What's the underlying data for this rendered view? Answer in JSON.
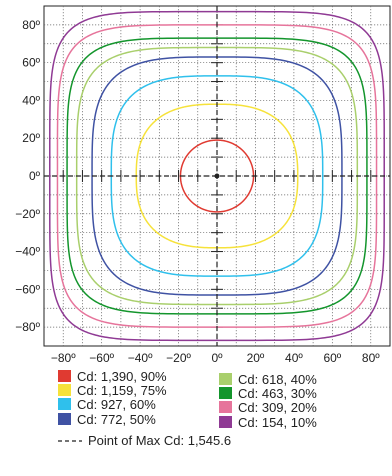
{
  "chart_data": {
    "type": "line",
    "title": "",
    "xlabel": "",
    "ylabel": "",
    "xlim": [
      -90,
      90
    ],
    "ylim": [
      -90,
      90
    ],
    "grid": true,
    "x_ticks": [
      "−80º",
      "−60º",
      "−40º",
      "−20º",
      "0º",
      "20º",
      "40º",
      "60º",
      "80º"
    ],
    "y_ticks": [
      "80º",
      "60º",
      "40º",
      "20º",
      "0º",
      "−20º",
      "−40º",
      "−60º",
      "−80º"
    ],
    "x_tick_values": [
      -80,
      -60,
      -40,
      -20,
      0,
      20,
      40,
      60,
      80
    ],
    "y_tick_values": [
      80,
      60,
      40,
      20,
      0,
      -20,
      -40,
      -60,
      -80
    ],
    "series": [
      {
        "name": "Cd: 1,390, 90%",
        "color": "#e03a31",
        "half_width_deg": 19,
        "half_height_deg": 19,
        "squareness": 2.0
      },
      {
        "name": "Cd: 1,159, 75%",
        "color": "#f6e23a",
        "half_width_deg": 42,
        "half_height_deg": 38,
        "squareness": 2.6
      },
      {
        "name": "Cd: 927, 60%",
        "color": "#2fc0ec",
        "half_width_deg": 55,
        "half_height_deg": 53,
        "squareness": 3.2
      },
      {
        "name": "Cd: 772, 50%",
        "color": "#3f52a3",
        "half_width_deg": 65,
        "half_height_deg": 63,
        "squareness": 3.6
      },
      {
        "name": "Cd: 618, 40%",
        "color": "#a9cf6c",
        "half_width_deg": 73,
        "half_height_deg": 68,
        "squareness": 4.2
      },
      {
        "name": "Cd: 463, 30%",
        "color": "#13952c",
        "half_width_deg": 78,
        "half_height_deg": 73,
        "squareness": 4.8
      },
      {
        "name": "Cd: 309, 20%",
        "color": "#e6749b",
        "half_width_deg": 83,
        "half_height_deg": 80,
        "squareness": 5.2
      },
      {
        "name": "Cd: 154, 10%",
        "color": "#8f3a94",
        "half_width_deg": 87,
        "half_height_deg": 87,
        "squareness": 5.6
      }
    ],
    "max_point": {
      "label": "Point of Max Cd: 1,545.6",
      "x": 0,
      "y": 0
    },
    "legend_placement": "bottom"
  }
}
